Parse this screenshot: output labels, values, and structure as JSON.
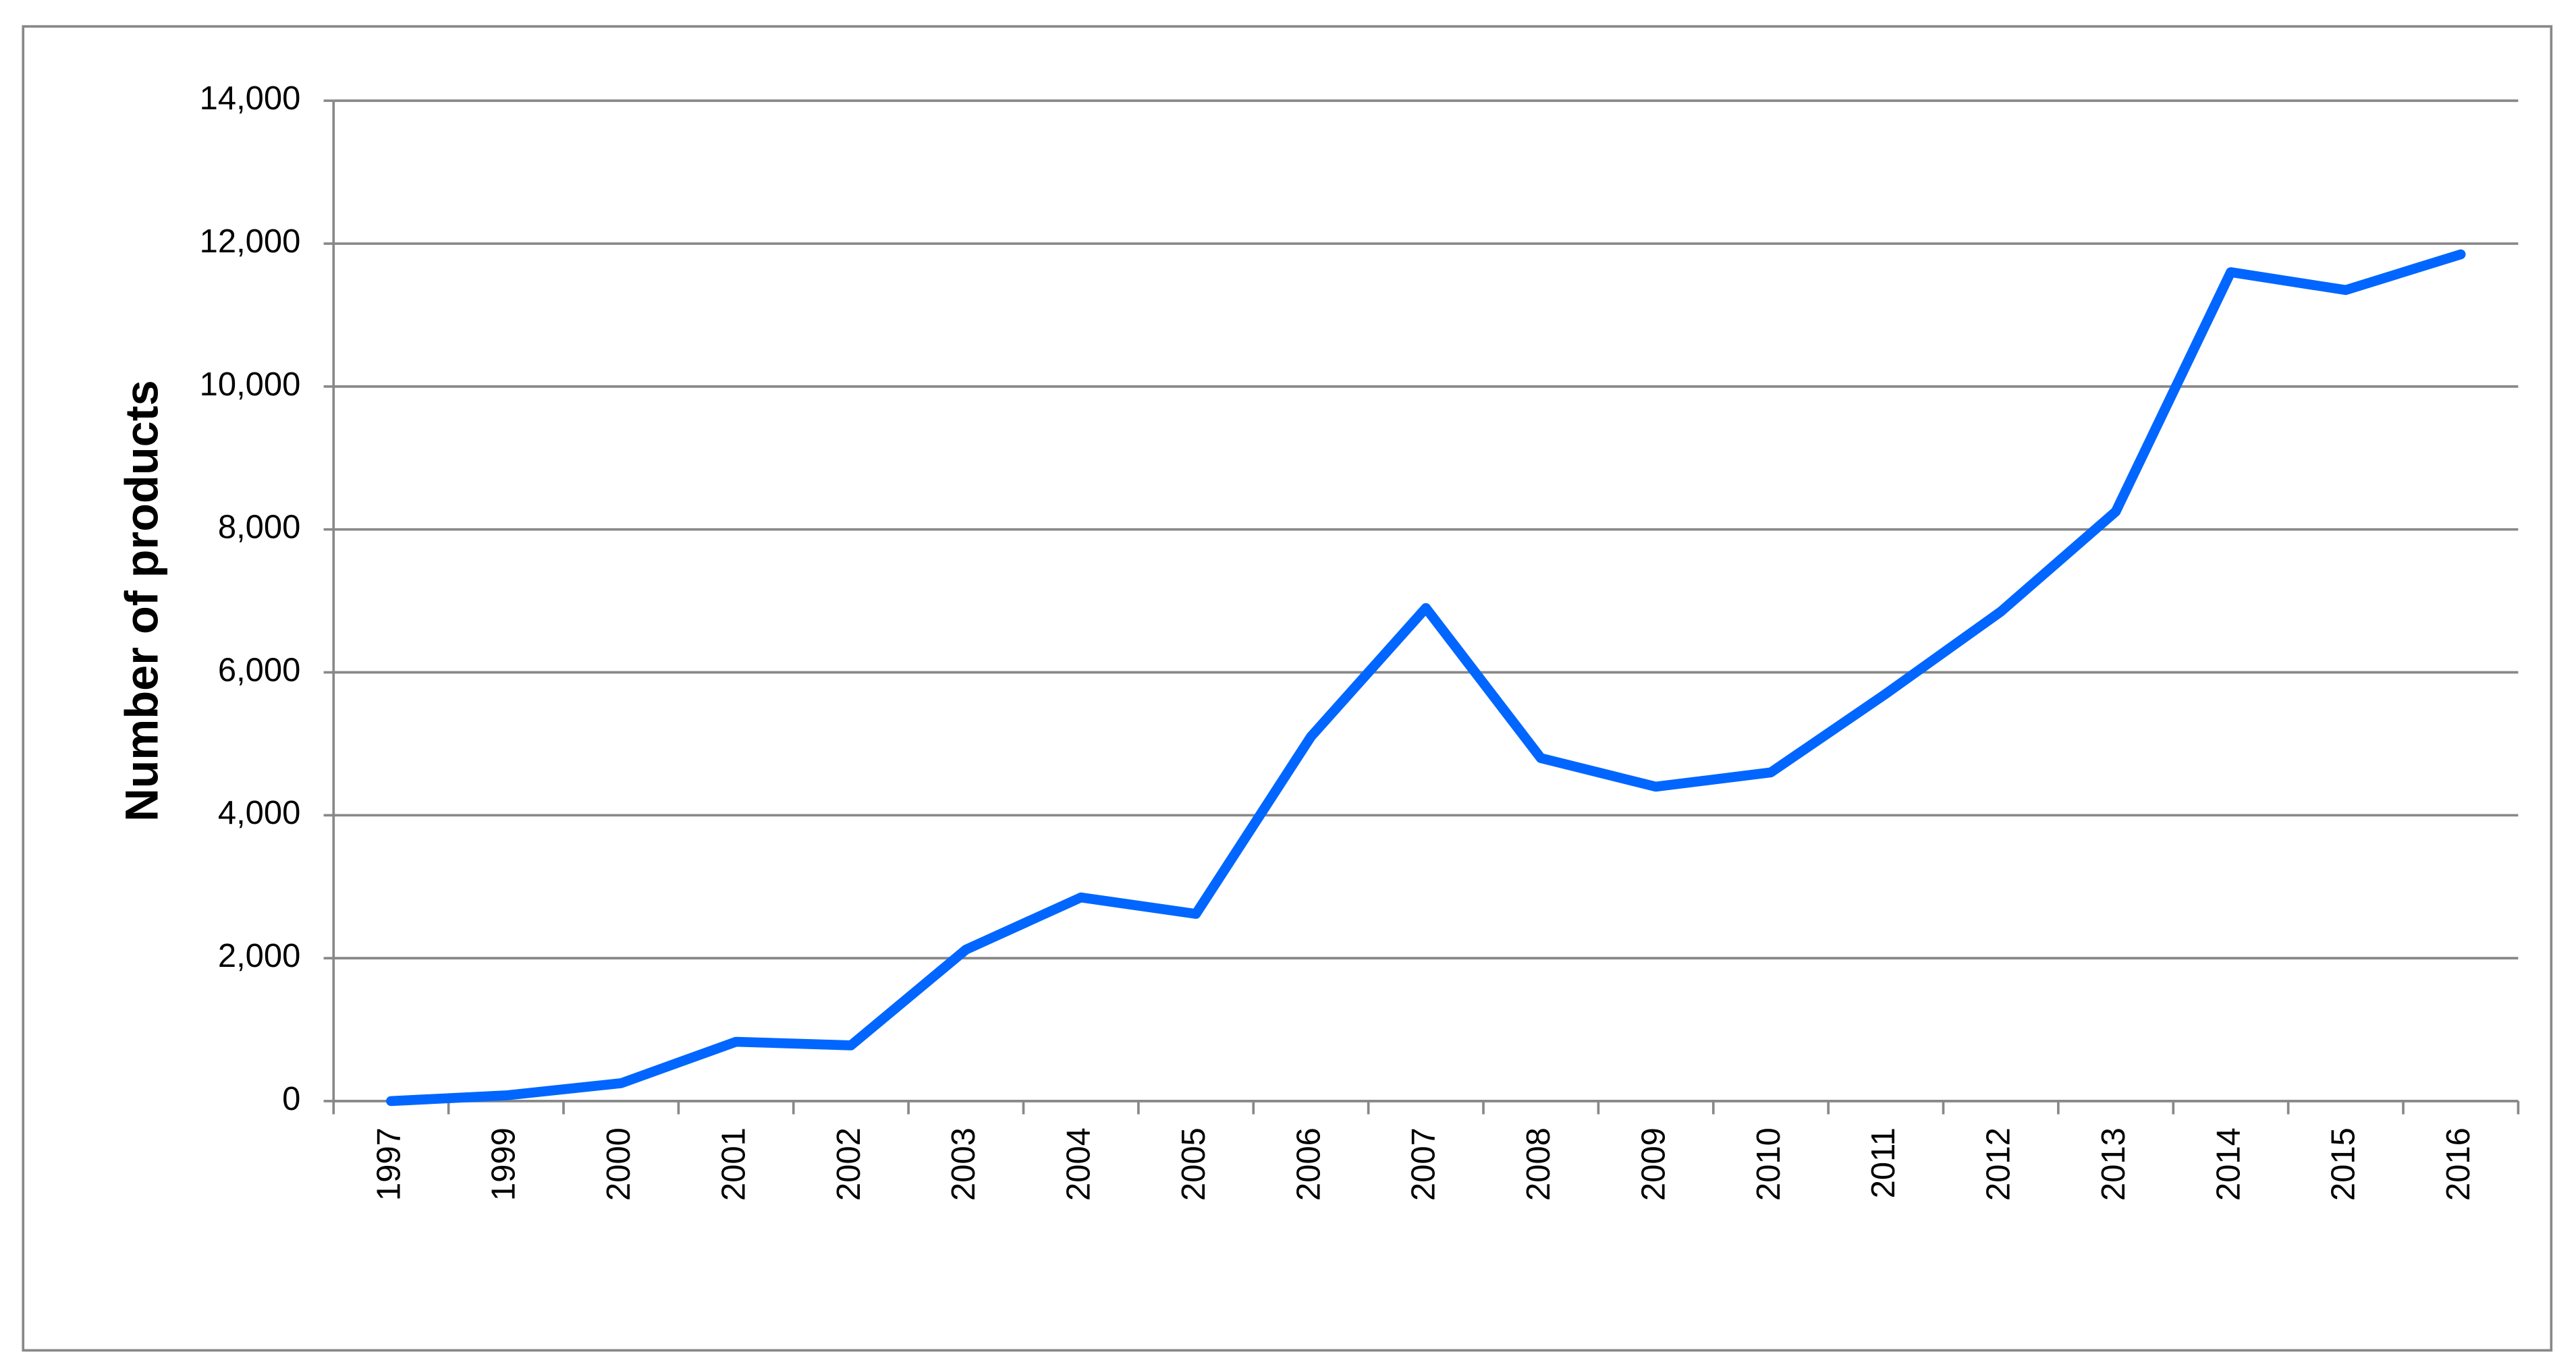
{
  "chart_data": {
    "type": "line",
    "y_label": "Number of products",
    "categories": [
      "1997",
      "1999",
      "2000",
      "2001",
      "2002",
      "2003",
      "2004",
      "2005",
      "2006",
      "2007",
      "2008",
      "2009",
      "2010",
      "2011",
      "2012",
      "2013",
      "2014",
      "2015",
      "2016"
    ],
    "series": [
      {
        "name": "Number of products",
        "color": "#0066ff",
        "values": [
          0,
          80,
          250,
          830,
          780,
          2120,
          2850,
          2620,
          5100,
          6900,
          4800,
          4400,
          4600,
          5700,
          6850,
          8250,
          11600,
          11350,
          11850
        ]
      }
    ],
    "ylim": [
      0,
      14000
    ],
    "yticks": [
      0,
      {
        "value": 2000,
        "label": "2,000"
      },
      {
        "value": 4000,
        "label": "4,000"
      },
      {
        "value": 6000,
        "label": "6,000"
      },
      {
        "value": 8000,
        "label": "8,000"
      },
      {
        "value": 10000,
        "label": "10,000"
      },
      {
        "value": 12000,
        "label": "12,000"
      },
      {
        "value": 14000,
        "label": "14,000"
      }
    ],
    "grid": true,
    "legend": false
  }
}
